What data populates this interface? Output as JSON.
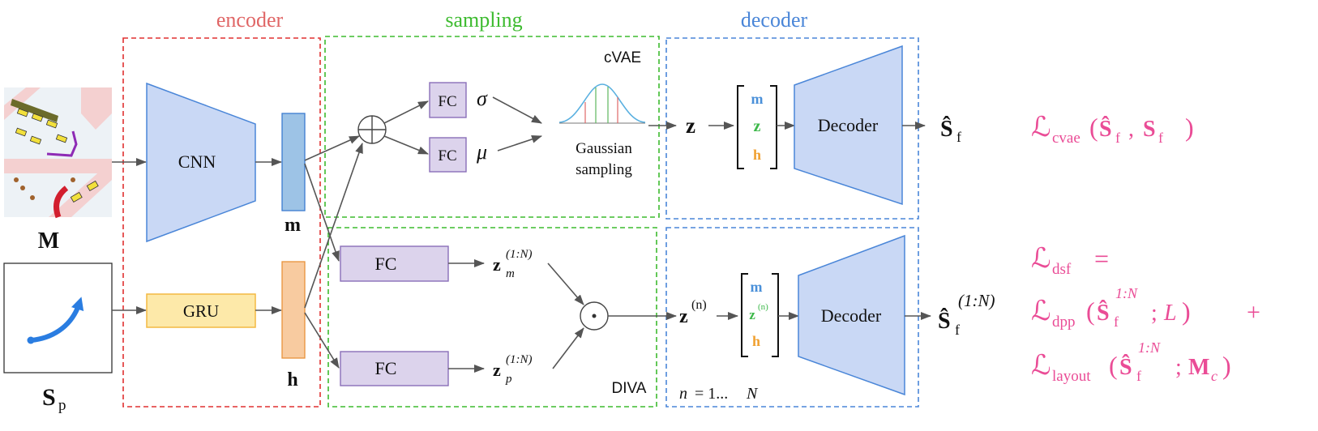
{
  "sections": {
    "encoder": "encoder",
    "sampling": "sampling",
    "decoder": "decoder"
  },
  "colors": {
    "encoder": "#e06666",
    "sampling": "#3dbb2f",
    "decoder": "#4a86d8",
    "loss": "#ea4c96",
    "diva_fill": "#e0f5dc",
    "network_fill": "#c9d8f5",
    "fc_fill": "#dcd3ec",
    "gru_fill": "#fde9a9",
    "m_bar": "#9dc3e6",
    "h_bar": "#f8cba0",
    "vector_m": "#4a90d9",
    "vector_z": "#3db84a",
    "vector_h": "#f0a030"
  },
  "inputs": {
    "map": {
      "label": "M",
      "icon": "map-image"
    },
    "path": {
      "label": "S",
      "sub": "p",
      "icon": "trajectory-icon"
    }
  },
  "encoder": {
    "cnn": "CNN",
    "gru": "GRU",
    "m": "m",
    "h": "h"
  },
  "cvae": {
    "tag": "cVAE",
    "fc_sigma": "FC",
    "fc_mu": "FC",
    "sigma": "σ",
    "mu": "μ",
    "gaussian": [
      "Gaussian",
      "sampling"
    ],
    "z": "z"
  },
  "diva": {
    "tag": "DIVA",
    "fc_m": "FC",
    "fc_p": "FC",
    "z_m": {
      "base": "z",
      "sub": "m",
      "sup": "(1:N)"
    },
    "z_p": {
      "base": "z",
      "sub": "p",
      "sup": "(1:N)"
    }
  },
  "decoder_top": {
    "vector": [
      "m",
      "z",
      "h"
    ],
    "label": "Decoder",
    "output": {
      "base": "Ŝ",
      "sub": "f"
    }
  },
  "decoder_bottom": {
    "z": {
      "base": "z",
      "sup": "(n)"
    },
    "vector": [
      "m",
      "z",
      "h"
    ],
    "vector_sup": "(n)",
    "label": "Decoder",
    "output": {
      "base": "Ŝ",
      "sub": "f",
      "sup": "(1:N)"
    },
    "range": {
      "var": "n",
      "eq": "= 1...",
      "end": "N"
    }
  },
  "losses": {
    "cvae": {
      "L": "ℒ",
      "sub": "cvae",
      "open": "(",
      "pred": "Ŝ",
      "pred_sub": "f",
      "comma": ",",
      "target": "S",
      "target_sub": "f",
      "close": ")"
    },
    "dsf": {
      "L": "ℒ",
      "sub": "dsf",
      "eq": "="
    },
    "dpp": {
      "L": "ℒ",
      "sub": "dpp",
      "open": "(",
      "pred": "Ŝ",
      "pred_sub": "f",
      "pred_sup": "1:N",
      "semi": ";",
      "arg": "L",
      "close": ")",
      "plus": "+"
    },
    "layout": {
      "L": "ℒ",
      "sub": "layout",
      "open": "(",
      "pred": "Ŝ",
      "pred_sub": "f",
      "pred_sup": "1:N",
      "semi": ";",
      "arg": "M",
      "arg_sub": "c",
      "close": ")"
    }
  }
}
